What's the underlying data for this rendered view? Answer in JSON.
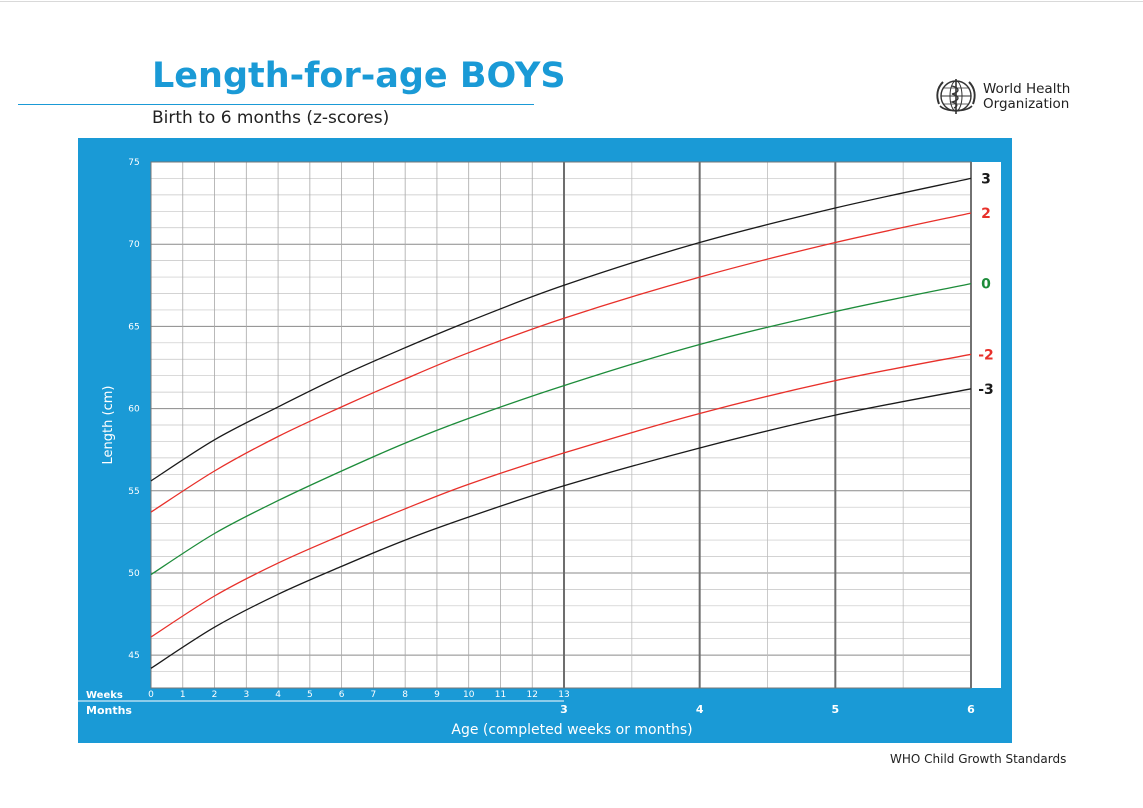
{
  "header": {
    "title": "Length-for-age BOYS",
    "subtitle": "Birth to 6 months (z-scores)",
    "org_line1": "World Health",
    "org_line2": "Organization",
    "logo_icon": "who-emblem-icon"
  },
  "footer": {
    "text": "WHO Child Growth Standards"
  },
  "colors": {
    "panel": "#1a9ad6",
    "title": "#1a9ad6",
    "sd3": "#1a1a1a",
    "sd2": "#e8302a",
    "median": "#1d8c3a"
  },
  "chart_data": {
    "type": "line",
    "ylabel": "Length (cm)",
    "xlabel": "Age (completed weeks or months)",
    "weeks_label": "Weeks",
    "months_label": "Months",
    "ylim": [
      43,
      75
    ],
    "y_ticks": [
      "45",
      "50",
      "55",
      "60",
      "65",
      "70",
      "75"
    ],
    "week_ticks": [
      "0",
      "1",
      "2",
      "3",
      "4",
      "5",
      "6",
      "7",
      "8",
      "9",
      "10",
      "11",
      "12",
      "13"
    ],
    "month_ticks": [
      "3",
      "4",
      "5",
      "6"
    ],
    "x_weeks": [
      0,
      2,
      4,
      6,
      8,
      10,
      13
    ],
    "x_months": [
      4,
      5,
      6
    ],
    "grid": true,
    "series": [
      {
        "name": "3",
        "color_key": "sd3",
        "weeks": [
          55.6,
          58.1,
          60.1,
          62.0,
          63.7,
          65.3,
          67.5
        ],
        "months": [
          70.1,
          72.2,
          74.0
        ]
      },
      {
        "name": "2",
        "color_key": "sd2",
        "weeks": [
          53.7,
          56.2,
          58.3,
          60.1,
          61.8,
          63.4,
          65.5
        ],
        "months": [
          68.0,
          70.1,
          71.9
        ]
      },
      {
        "name": "0",
        "color_key": "median",
        "weeks": [
          49.9,
          52.4,
          54.4,
          56.2,
          57.9,
          59.4,
          61.4
        ],
        "months": [
          63.9,
          65.9,
          67.6
        ]
      },
      {
        "name": "-2",
        "color_key": "sd2",
        "weeks": [
          46.1,
          48.6,
          50.6,
          52.3,
          53.9,
          55.4,
          57.3
        ],
        "months": [
          59.7,
          61.7,
          63.3
        ]
      },
      {
        "name": "-3",
        "color_key": "sd3",
        "weeks": [
          44.2,
          46.7,
          48.7,
          50.4,
          52.0,
          53.4,
          55.3
        ],
        "months": [
          57.6,
          59.6,
          61.2
        ]
      }
    ]
  }
}
